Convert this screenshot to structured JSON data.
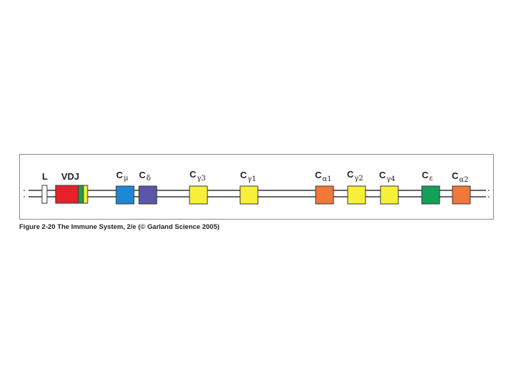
{
  "labels": {
    "L": "L",
    "VDJ": "VDJ",
    "cmu_base": "C",
    "cmu_sub": "μ",
    "cdelta_base": "C",
    "cdelta_sub": "δ",
    "cg3_base": "C",
    "cg3_sub": "γ3",
    "cg1_base": "C",
    "cg1_sub": "γ1",
    "ca1_base": "C",
    "ca1_sub": "α1",
    "cg2_base": "C",
    "cg2_sub": "γ2",
    "cg4_base": "C",
    "cg4_sub": "γ4",
    "ceps_base": "C",
    "ceps_sub": "ε",
    "ca2_base": "C",
    "ca2_sub": "α2"
  },
  "colors": {
    "leader": "#ffffff",
    "vdj_red": "#e8202a",
    "vdj_green": "#1f9e4a",
    "vdj_yellow": "#f5f03a",
    "cmu": "#1e88d6",
    "cdelta": "#5a56a8",
    "cgamma": "#f7f03a",
    "calpha": "#f07838",
    "cepsilon": "#14a058"
  },
  "caption": "Figure 2-20  The Immune System, 2/e (© Garland Science 2005)"
}
